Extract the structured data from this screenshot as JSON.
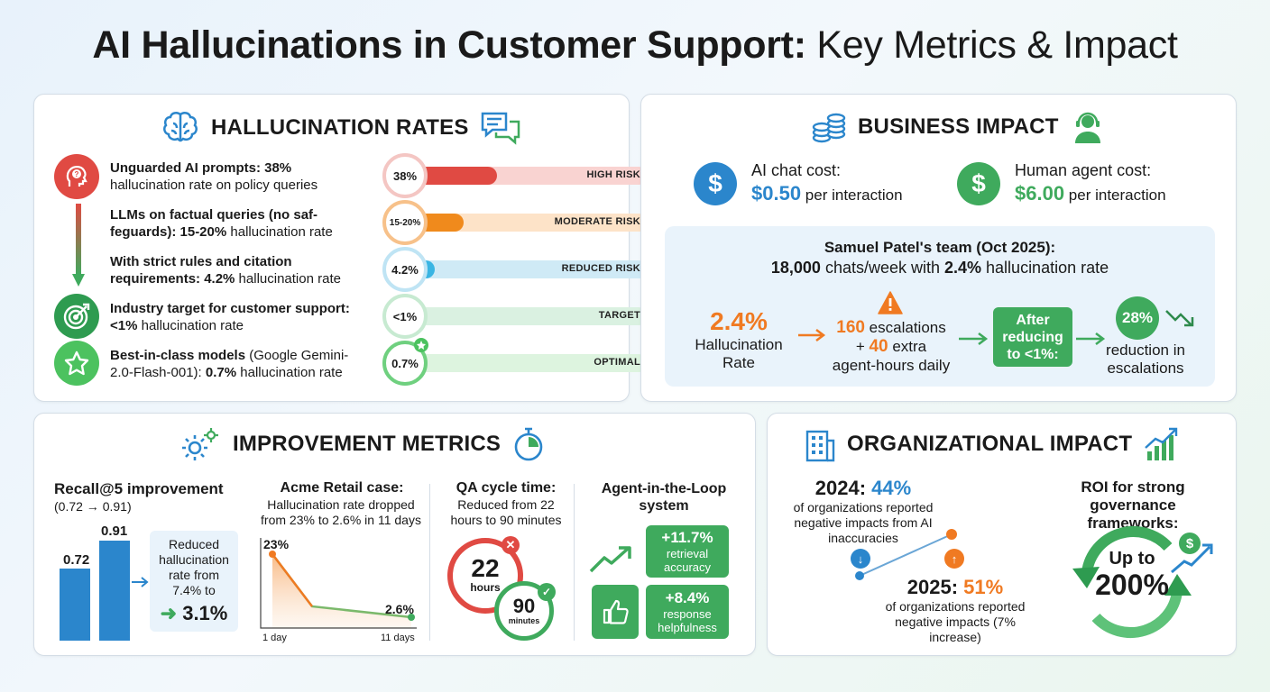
{
  "header": {
    "title_bold": "AI Hallucinations in Customer Support:",
    "title_light": "Key Metrics & Impact"
  },
  "halluc": {
    "title": "HALLUCINATION RATES",
    "rows": [
      {
        "bold": "Unguarded AI prompts: 38%",
        "rest": "hallucination rate on policy queries",
        "ring": "38%",
        "risk": "HIGH RISK",
        "fill": 0.38,
        "color": "#e04a43",
        "track": "#f9d3d1"
      },
      {
        "bold": "LLMs on factual queries (no saf-feguards): 15-20%",
        "rest": " hallucination rate",
        "ring": "15-20%",
        "risk": "MODERATE RISK",
        "fill": 0.2,
        "color": "#f08a1c",
        "track": "#fde3c8"
      },
      {
        "bold": "With strict rules and citation requirements: 4.2%",
        "rest": " hallucination rate",
        "ring": "4.2%",
        "risk": "REDUCED RISK",
        "fill": 0.042,
        "color": "#3ab5e3",
        "track": "#cfeaf6"
      },
      {
        "bold": "Industry target for customer support: <1%",
        "rest": " hallucination rate",
        "ring": "<1%",
        "risk": "TARGET",
        "fill": 0.01,
        "color": "#8fd3a4",
        "track": "#daf1e1"
      },
      {
        "bold": "Best-in-class models",
        "mid": " (Google Gemini-2.0-Flash-001): ",
        "bold2": "0.7%",
        "rest": " hallucination rate",
        "ring": "0.7%",
        "risk": "OPTIMAL",
        "fill": 0.007,
        "color": "#4cc25f",
        "track": "#ddf4df"
      }
    ]
  },
  "business": {
    "title": "BUSINESS IMPACT",
    "ai_label": "AI chat cost:",
    "ai_value": "$0.50",
    "ai_unit": "per interaction",
    "human_label": "Human agent cost:",
    "human_value": "$6.00",
    "human_unit": "per interaction",
    "team_line1": "Samuel Patel's team (Oct 2025):",
    "team_chats": "18,000",
    "team_mid": " chats/week with ",
    "team_rate": "2.4%",
    "team_end": " hallucination rate",
    "rate_value": "2.4%",
    "rate_label1": "Hallucination",
    "rate_label2": "Rate",
    "esc_value": "160",
    "esc_label": " escalations",
    "extra_prefix": "+ ",
    "extra_value": "40",
    "extra_label": " extra",
    "agent_hours": "agent-hours daily",
    "after_box": "After reducing to <1%:",
    "reduction_value": "28%",
    "reduction_label1": "reduction in",
    "reduction_label2": "escalations"
  },
  "improvement": {
    "title": "IMPROVEMENT METRICS",
    "recall_title": "Recall@5 improvement",
    "recall_sub": "(0.72 → 0.91)",
    "recall_bars": [
      0.72,
      0.91
    ],
    "recall_labels": [
      "0.72",
      "0.91"
    ],
    "reduced_text": "Reduced hallucination rate from 7.4% to",
    "reduced_value": "3.1%",
    "acme_title": "Acme Retail case:",
    "acme_sub": "Hallucination rate dropped from 23% to 2.6% in 11 days",
    "acme_start": "23%",
    "acme_end": "2.6%",
    "acme_x0": "1 day",
    "acme_x1": "11 days",
    "qa_title": "QA cycle time:",
    "qa_sub": "Reduced from 22 hours to 90 minutes",
    "qa_from": "22",
    "qa_from_unit": "hours",
    "qa_to": "90",
    "qa_to_unit": "minutes",
    "loop_title": "Agent-in-the-Loop system",
    "loop_a_value": "+11.7%",
    "loop_a_label": "retrieval accuracy",
    "loop_b_value": "+8.4%",
    "loop_b_label": "response helpfulness"
  },
  "org": {
    "title": "ORGANIZATIONAL IMPACT",
    "y2024_year": "2024:",
    "y2024_value": "44%",
    "y2024_text": "of organizations reported negative impacts from AI inaccuracies",
    "y2025_year": "2025:",
    "y2025_value": "51%",
    "y2025_text": "of organizations reported negative impacts (7% increase)",
    "roi_title": "ROI for strong governance frameworks:",
    "roi_up": "Up to",
    "roi_value": "200%"
  },
  "colors": {
    "blue": "#2b86cc",
    "green": "#3faa5d",
    "orange": "#f07a22",
    "red": "#e04a43"
  }
}
